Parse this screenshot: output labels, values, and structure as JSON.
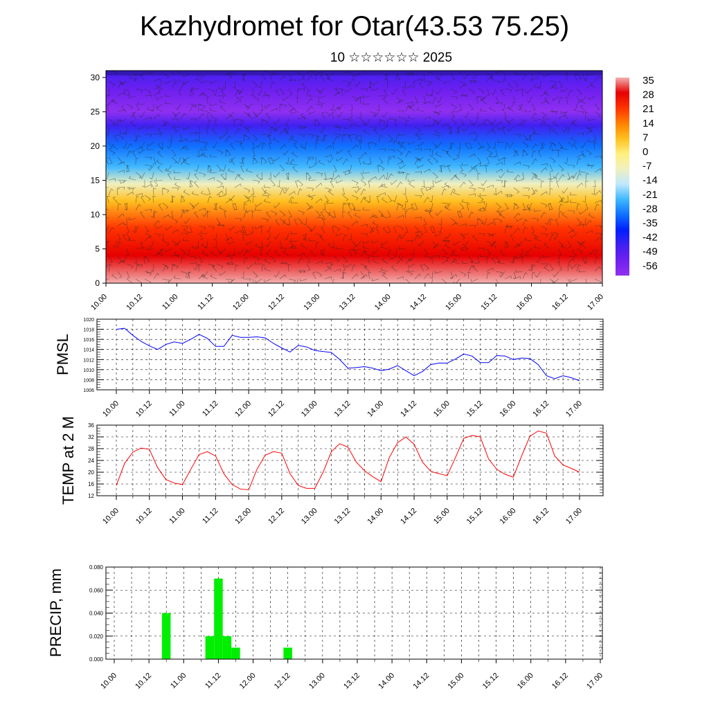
{
  "title": "Kazhydromet for Otar(43.53 75.25)",
  "subtitle": "10 ☆☆☆☆☆☆ 2025",
  "time_labels": [
    "10.00",
    "10.12",
    "11.00",
    "11.12",
    "12.00",
    "12.12",
    "13.00",
    "13.12",
    "14.00",
    "14.12",
    "15.00",
    "15.12",
    "16.00",
    "16.12",
    "17.00"
  ],
  "colors": {
    "pmsl": "#0000ff",
    "temp": "#ff0000",
    "precip": "#00ee00"
  },
  "chart_data": [
    {
      "type": "heatmap",
      "name": "cross-section",
      "y_ticks": [
        0,
        5,
        10,
        15,
        20,
        25,
        30
      ],
      "ylim": [
        0,
        31
      ],
      "colorbar": {
        "labels": [
          "35",
          "28",
          "21",
          "14",
          "7",
          "0",
          "-7",
          "-14",
          "-21",
          "-28",
          "-35",
          "-42",
          "-49",
          "-56"
        ],
        "stops": [
          "#f2b0b0",
          "#e60000",
          "#ff3300",
          "#ff8000",
          "#ffc020",
          "#fff080",
          "#f0f0c0",
          "#c0e8ff",
          "#40b8ff",
          "#1070ff",
          "#0020ff",
          "#4020f0",
          "#7020f0",
          "#9030f0"
        ]
      },
      "temperature_by_level": [
        {
          "level": 0,
          "value": 34
        },
        {
          "level": 4,
          "value": 30
        },
        {
          "level": 8,
          "value": 22
        },
        {
          "level": 12,
          "value": 8
        },
        {
          "level": 14.5,
          "value": -6
        },
        {
          "level": 17,
          "value": -18
        },
        {
          "level": 20,
          "value": -30
        },
        {
          "level": 23,
          "value": -45
        },
        {
          "level": 25,
          "value": -55
        },
        {
          "level": 28,
          "value": -48
        },
        {
          "level": 31,
          "value": -45
        }
      ]
    },
    {
      "type": "line",
      "name": "PMSL",
      "ylabel": "PMSL",
      "ylim": [
        1006,
        1020
      ],
      "y_ticks": [
        1006,
        1008,
        1010,
        1012,
        1014,
        1016,
        1018,
        1020
      ],
      "x": [
        0,
        3,
        6,
        9,
        12,
        15,
        18,
        21,
        24,
        27,
        30,
        33,
        36,
        39,
        42,
        45,
        48,
        51,
        54,
        57,
        60,
        63,
        66,
        69,
        72,
        75,
        78,
        81,
        84,
        87,
        90,
        93,
        96,
        99,
        102,
        105,
        108,
        111,
        114,
        117,
        120,
        123,
        126,
        129,
        132,
        135,
        138,
        141,
        144,
        147,
        150,
        153,
        156,
        159,
        162,
        165,
        168
      ],
      "values": [
        1018.0,
        1018.2,
        1016.8,
        1015.6,
        1014.7,
        1014.0,
        1015.0,
        1015.5,
        1015.2,
        1016.0,
        1017.0,
        1016.2,
        1014.6,
        1014.6,
        1016.8,
        1016.4,
        1016.4,
        1016.5,
        1016.3,
        1015.2,
        1014.3,
        1013.5,
        1014.8,
        1014.5,
        1013.8,
        1013.6,
        1013.4,
        1012.0,
        1010.3,
        1010.4,
        1010.6,
        1010.3,
        1009.8,
        1010.1,
        1010.8,
        1009.8,
        1008.8,
        1009.6,
        1011.0,
        1011.3,
        1011.3,
        1012.1,
        1013.1,
        1012.7,
        1011.4,
        1011.4,
        1012.8,
        1012.7,
        1012.0,
        1012.3,
        1012.2,
        1011.0,
        1008.8,
        1008.2,
        1008.8,
        1008.4,
        1007.8
      ]
    },
    {
      "type": "line",
      "name": "TEMP at 2 M",
      "ylabel": "TEMP at 2 M",
      "ylim": [
        12,
        36
      ],
      "y_ticks": [
        12,
        16,
        20,
        24,
        28,
        32,
        36
      ],
      "x": [
        0,
        3,
        6,
        9,
        12,
        15,
        18,
        21,
        24,
        27,
        30,
        33,
        36,
        39,
        42,
        45,
        48,
        51,
        54,
        57,
        60,
        63,
        66,
        69,
        72,
        75,
        78,
        81,
        84,
        87,
        90,
        93,
        96,
        99,
        102,
        105,
        108,
        111,
        114,
        117,
        120,
        123,
        126,
        129,
        132,
        135,
        138,
        141,
        144,
        147,
        150,
        153,
        156,
        159,
        162,
        165,
        168
      ],
      "values": [
        15.5,
        23.0,
        26.8,
        28.2,
        27.8,
        21.5,
        17.5,
        16.3,
        15.8,
        21.0,
        26.0,
        27.0,
        25.5,
        19.5,
        15.8,
        14.3,
        14.0,
        21.0,
        25.8,
        27.0,
        26.5,
        19.5,
        15.5,
        14.5,
        14.5,
        20.0,
        27.0,
        29.7,
        28.5,
        23.5,
        20.5,
        18.5,
        16.8,
        25.0,
        30.0,
        32.0,
        29.5,
        23.5,
        20.3,
        19.5,
        18.8,
        25.0,
        31.5,
        32.5,
        32.0,
        24.5,
        21.0,
        19.3,
        18.3,
        25.5,
        32.2,
        34.0,
        33.3,
        25.5,
        22.5,
        21.3,
        20.0
      ]
    },
    {
      "type": "bar",
      "name": "PRECIP",
      "ylabel": "PRECIP, mm",
      "ylim": [
        0,
        0.08
      ],
      "y_ticks": [
        "0.000",
        "0.020",
        "0.040",
        "0.060",
        "0.080"
      ],
      "bar_width_hours": 3,
      "x": [
        18,
        33,
        36,
        39,
        42,
        60
      ],
      "values": [
        0.04,
        0.02,
        0.07,
        0.02,
        0.01,
        0.01
      ]
    }
  ]
}
